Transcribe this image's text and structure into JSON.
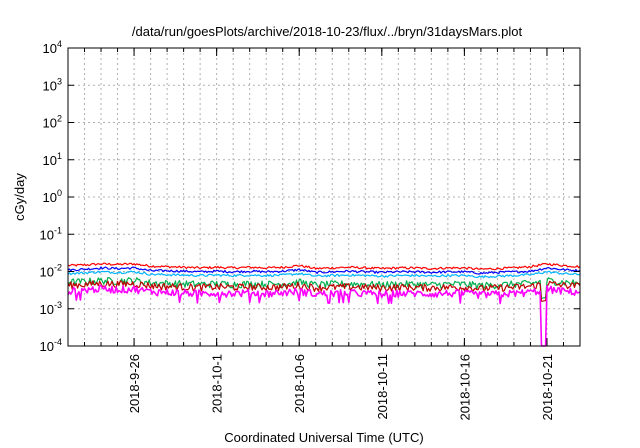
{
  "chart_data": {
    "type": "line",
    "title": "/data/run/goesPlots/archive/2018-10-23/flux/../bryn/31daysMars.plot",
    "xlabel": "Coordinated Universal Time (UTC)",
    "ylabel": "cGy/day",
    "yscale": "log",
    "ylim": [
      0.0001,
      10000
    ],
    "yticks": [
      {
        "value": 0.0001,
        "base": "10",
        "exp": "-4"
      },
      {
        "value": 0.001,
        "base": "10",
        "exp": "-3"
      },
      {
        "value": 0.01,
        "base": "10",
        "exp": "-2"
      },
      {
        "value": 0.1,
        "base": "10",
        "exp": "-1"
      },
      {
        "value": 1,
        "base": "10",
        "exp": "0"
      },
      {
        "value": 10,
        "base": "10",
        "exp": "1"
      },
      {
        "value": 100,
        "base": "10",
        "exp": "2"
      },
      {
        "value": 1000,
        "base": "10",
        "exp": "3"
      },
      {
        "value": 10000,
        "base": "10",
        "exp": "4"
      }
    ],
    "xlim": [
      "2018-09-22",
      "2018-10-23"
    ],
    "xtick_labels": [
      "2018-9-26",
      "2018-10-1",
      "2018-10-6",
      "2018-10-11",
      "2018-10-16",
      "2018-10-21"
    ],
    "xtick_dates": [
      "2018-09-26",
      "2018-10-01",
      "2018-10-06",
      "2018-10-11",
      "2018-10-16",
      "2018-10-21"
    ],
    "grid": true,
    "legend": "none",
    "x": [
      "2018-09-22",
      "2018-09-23",
      "2018-09-24",
      "2018-09-25",
      "2018-09-26",
      "2018-09-27",
      "2018-09-28",
      "2018-09-29",
      "2018-09-30",
      "2018-10-01",
      "2018-10-02",
      "2018-10-03",
      "2018-10-04",
      "2018-10-05",
      "2018-10-06",
      "2018-10-07",
      "2018-10-08",
      "2018-10-09",
      "2018-10-10",
      "2018-10-11",
      "2018-10-12",
      "2018-10-13",
      "2018-10-14",
      "2018-10-15",
      "2018-10-16",
      "2018-10-17",
      "2018-10-18",
      "2018-10-19",
      "2018-10-20",
      "2018-10-21",
      "2018-10-22",
      "2018-10-23"
    ],
    "series": [
      {
        "color": "#ff0000",
        "values": [
          0.0145,
          0.015,
          0.016,
          0.0155,
          0.016,
          0.014,
          0.0135,
          0.013,
          0.0125,
          0.013,
          0.0125,
          0.013,
          0.0125,
          0.013,
          0.0145,
          0.012,
          0.0125,
          0.013,
          0.0125,
          0.012,
          0.0125,
          0.0125,
          0.012,
          0.0125,
          0.0125,
          0.0115,
          0.012,
          0.0125,
          0.0135,
          0.016,
          0.0145,
          0.0135
        ]
      },
      {
        "color": "#0000ff",
        "values": [
          0.011,
          0.0115,
          0.0125,
          0.012,
          0.0125,
          0.0105,
          0.0105,
          0.0102,
          0.0098,
          0.0102,
          0.0098,
          0.0102,
          0.0098,
          0.0102,
          0.0112,
          0.0095,
          0.0098,
          0.0102,
          0.0098,
          0.0095,
          0.0098,
          0.0098,
          0.0095,
          0.0098,
          0.0098,
          0.009,
          0.0095,
          0.0098,
          0.0102,
          0.0125,
          0.0112,
          0.0105
        ]
      },
      {
        "color": "#00b4ff",
        "values": [
          0.0088,
          0.0092,
          0.0098,
          0.0094,
          0.0098,
          0.0084,
          0.0082,
          0.008,
          0.0078,
          0.008,
          0.0078,
          0.008,
          0.0078,
          0.008,
          0.0088,
          0.0075,
          0.0078,
          0.008,
          0.0078,
          0.0075,
          0.0078,
          0.0078,
          0.0075,
          0.0078,
          0.0078,
          0.0072,
          0.0075,
          0.0078,
          0.0082,
          0.0098,
          0.0088,
          0.0083
        ]
      },
      {
        "color": "#00b050",
        "values": [
          0.0052,
          0.0054,
          0.0058,
          0.0056,
          0.0058,
          0.005,
          0.0048,
          0.0047,
          0.0046,
          0.0047,
          0.0046,
          0.0047,
          0.0046,
          0.0047,
          0.0052,
          0.0044,
          0.0046,
          0.0047,
          0.0046,
          0.0044,
          0.0046,
          0.0046,
          0.0044,
          0.0046,
          0.0046,
          0.0042,
          0.0044,
          0.0046,
          0.0048,
          0.0058,
          0.0052,
          0.0049
        ]
      },
      {
        "color": "#c00000",
        "values": [
          0.0043,
          0.0045,
          0.0048,
          0.0046,
          0.0048,
          0.0042,
          0.004,
          0.0039,
          0.0038,
          0.0039,
          0.0038,
          0.0039,
          0.0038,
          0.0039,
          0.0043,
          0.0037,
          0.0038,
          0.0039,
          0.0038,
          0.0037,
          0.0038,
          0.0038,
          0.0037,
          0.0038,
          0.0038,
          0.0035,
          0.0037,
          0.0038,
          0.004,
          0.0048,
          0.0043,
          0.0041
        ]
      },
      {
        "color": "#ff00ff",
        "values": [
          0.003,
          0.0032,
          0.0035,
          0.0033,
          0.0034,
          0.0029,
          0.0028,
          0.0027,
          0.0026,
          0.0027,
          0.0026,
          0.0027,
          0.0026,
          0.0027,
          0.003,
          0.0025,
          0.0026,
          0.0027,
          0.0026,
          0.0025,
          0.0026,
          0.0026,
          0.0025,
          0.0026,
          0.0026,
          0.0024,
          0.0025,
          0.0026,
          0.0028,
          0.0034,
          0.003,
          0.0028
        ]
      }
    ]
  },
  "style": {
    "grid_color": "#b0b0b0",
    "axis_color": "#000000"
  }
}
